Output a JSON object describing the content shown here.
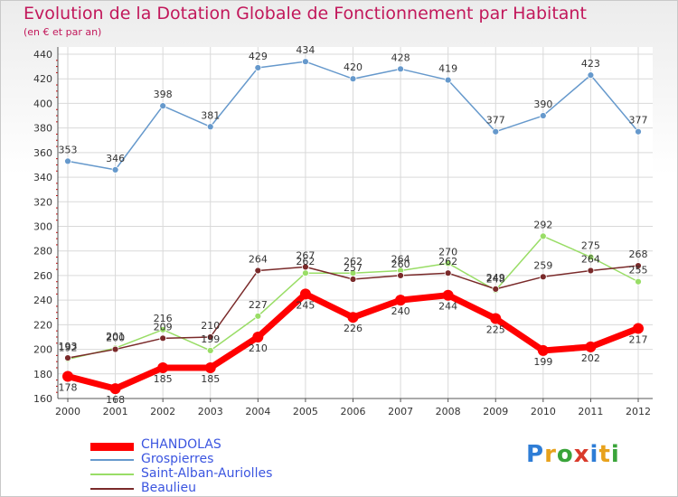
{
  "chart_data": {
    "type": "line",
    "title": "Evolution de la Dotation Globale de Fonctionnement par Habitant",
    "subtitle": "(en € et par an)",
    "x": [
      "2000",
      "2001",
      "2002",
      "2003",
      "2004",
      "2005",
      "2006",
      "2007",
      "2008",
      "2009",
      "2010",
      "2011",
      "2012"
    ],
    "ylim": [
      160,
      440
    ],
    "yticks": [
      "160",
      "180",
      "200",
      "220",
      "240",
      "260",
      "280",
      "300",
      "320",
      "340",
      "360",
      "380",
      "400",
      "420",
      "440"
    ],
    "series": [
      {
        "name": "CHANDOLAS",
        "color": "#ff0000",
        "values": [
          178,
          168,
          185,
          185,
          210,
          245,
          226,
          240,
          244,
          225,
          199,
          202,
          217
        ]
      },
      {
        "name": "Grospierres",
        "color": "#6699cc",
        "values": [
          353,
          346,
          398,
          381,
          429,
          434,
          420,
          428,
          419,
          377,
          390,
          423,
          377
        ]
      },
      {
        "name": "Saint-Alban-Auriolles",
        "color": "#99dd66",
        "values": [
          192,
          201,
          216,
          199,
          227,
          262,
          262,
          264,
          270,
          248,
          292,
          275,
          255
        ]
      },
      {
        "name": "Beaulieu",
        "color": "#7a2a2a",
        "values": [
          193,
          200,
          209,
          210,
          264,
          267,
          257,
          260,
          262,
          249,
          259,
          264,
          268
        ]
      }
    ]
  },
  "legend": {
    "items": [
      "CHANDOLAS",
      "Grospierres",
      "Saint-Alban-Auriolles",
      "Beaulieu"
    ]
  },
  "logo": {
    "text": "Proxiti",
    "colors": [
      "#2e7dd6",
      "#e8a21c",
      "#3aa43a",
      "#d93a2b",
      "#2e7dd6",
      "#e8a21c",
      "#3aa43a"
    ]
  }
}
